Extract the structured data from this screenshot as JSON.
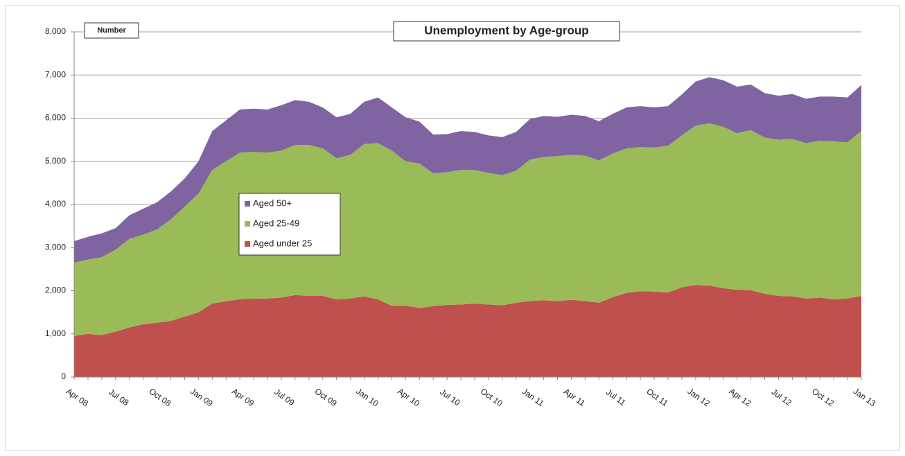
{
  "chart_data": {
    "type": "stacked_area",
    "title": "Unemployment by Age-group",
    "y_label": "Number",
    "categories": [
      "Apr 08",
      null,
      null,
      "Jul 08",
      null,
      null,
      "Oct 08",
      null,
      null,
      "Jan 09",
      null,
      null,
      "Apr 09",
      null,
      null,
      "Jul 09",
      null,
      null,
      "Oct 09",
      null,
      null,
      "Jan 10",
      null,
      null,
      "Apr 10",
      null,
      null,
      "Jul 10",
      null,
      null,
      "Oct 10",
      null,
      null,
      "Jan 11",
      null,
      null,
      "Apr 11",
      null,
      null,
      "Jul 11",
      null,
      null,
      "Oct 11",
      null,
      null,
      "Jan 12",
      null,
      null,
      "Apr 12",
      null,
      null,
      "Jul 12",
      null,
      null,
      "Oct 12",
      null,
      null,
      "Jan 13"
    ],
    "series": [
      {
        "name": "Aged under 25",
        "color": "#c0504d",
        "values": [
          950,
          1000,
          970,
          1050,
          1150,
          1220,
          1260,
          1300,
          1400,
          1500,
          1700,
          1760,
          1800,
          1820,
          1820,
          1840,
          1900,
          1880,
          1880,
          1800,
          1820,
          1870,
          1800,
          1650,
          1650,
          1600,
          1640,
          1670,
          1680,
          1700,
          1680,
          1660,
          1720,
          1760,
          1780,
          1760,
          1790,
          1760,
          1720,
          1850,
          1950,
          1990,
          1980,
          1960,
          2080,
          2130,
          2120,
          2060,
          2020,
          2010,
          1930,
          1880,
          1870,
          1820,
          1840,
          1800,
          1820,
          1880
        ]
      },
      {
        "name": "Aged 25-49",
        "color": "#9bbb59",
        "values": [
          1700,
          1720,
          1810,
          1900,
          2050,
          2080,
          2160,
          2350,
          2550,
          2750,
          3100,
          3240,
          3400,
          3400,
          3380,
          3410,
          3480,
          3500,
          3420,
          3270,
          3330,
          3530,
          3620,
          3600,
          3350,
          3350,
          3080,
          3080,
          3120,
          3100,
          3050,
          3020,
          3060,
          3280,
          3320,
          3360,
          3360,
          3370,
          3300,
          3330,
          3350,
          3340,
          3340,
          3400,
          3520,
          3700,
          3760,
          3740,
          3630,
          3710,
          3620,
          3620,
          3650,
          3600,
          3640,
          3660,
          3620,
          3820
        ]
      },
      {
        "name": "Aged 50+",
        "color": "#8064a2",
        "values": [
          500,
          530,
          550,
          500,
          550,
          600,
          630,
          650,
          650,
          750,
          900,
          950,
          1000,
          1000,
          1000,
          1050,
          1040,
          1000,
          950,
          950,
          950,
          980,
          1060,
          1000,
          1020,
          970,
          900,
          880,
          900,
          880,
          870,
          880,
          900,
          940,
          950,
          910,
          930,
          920,
          910,
          920,
          950,
          950,
          930,
          920,
          950,
          1020,
          1070,
          1080,
          1080,
          1060,
          1030,
          1020,
          1040,
          1030,
          1020,
          1040,
          1040,
          1070
        ]
      }
    ],
    "ylim": [
      0,
      8000
    ],
    "yticks": [
      0,
      {
        "value": 1000,
        "label": "1,000"
      },
      {
        "value": 2000,
        "label": "2,000"
      },
      {
        "value": 3000,
        "label": "3,000"
      },
      {
        "value": 4000,
        "label": "4,000"
      },
      {
        "value": 5000,
        "label": "5,000"
      },
      {
        "value": 6000,
        "label": "6,000"
      },
      {
        "value": 7000,
        "label": "7,000"
      },
      {
        "value": 8000,
        "label": "8,000"
      }
    ],
    "grid": true,
    "legend": "left"
  }
}
